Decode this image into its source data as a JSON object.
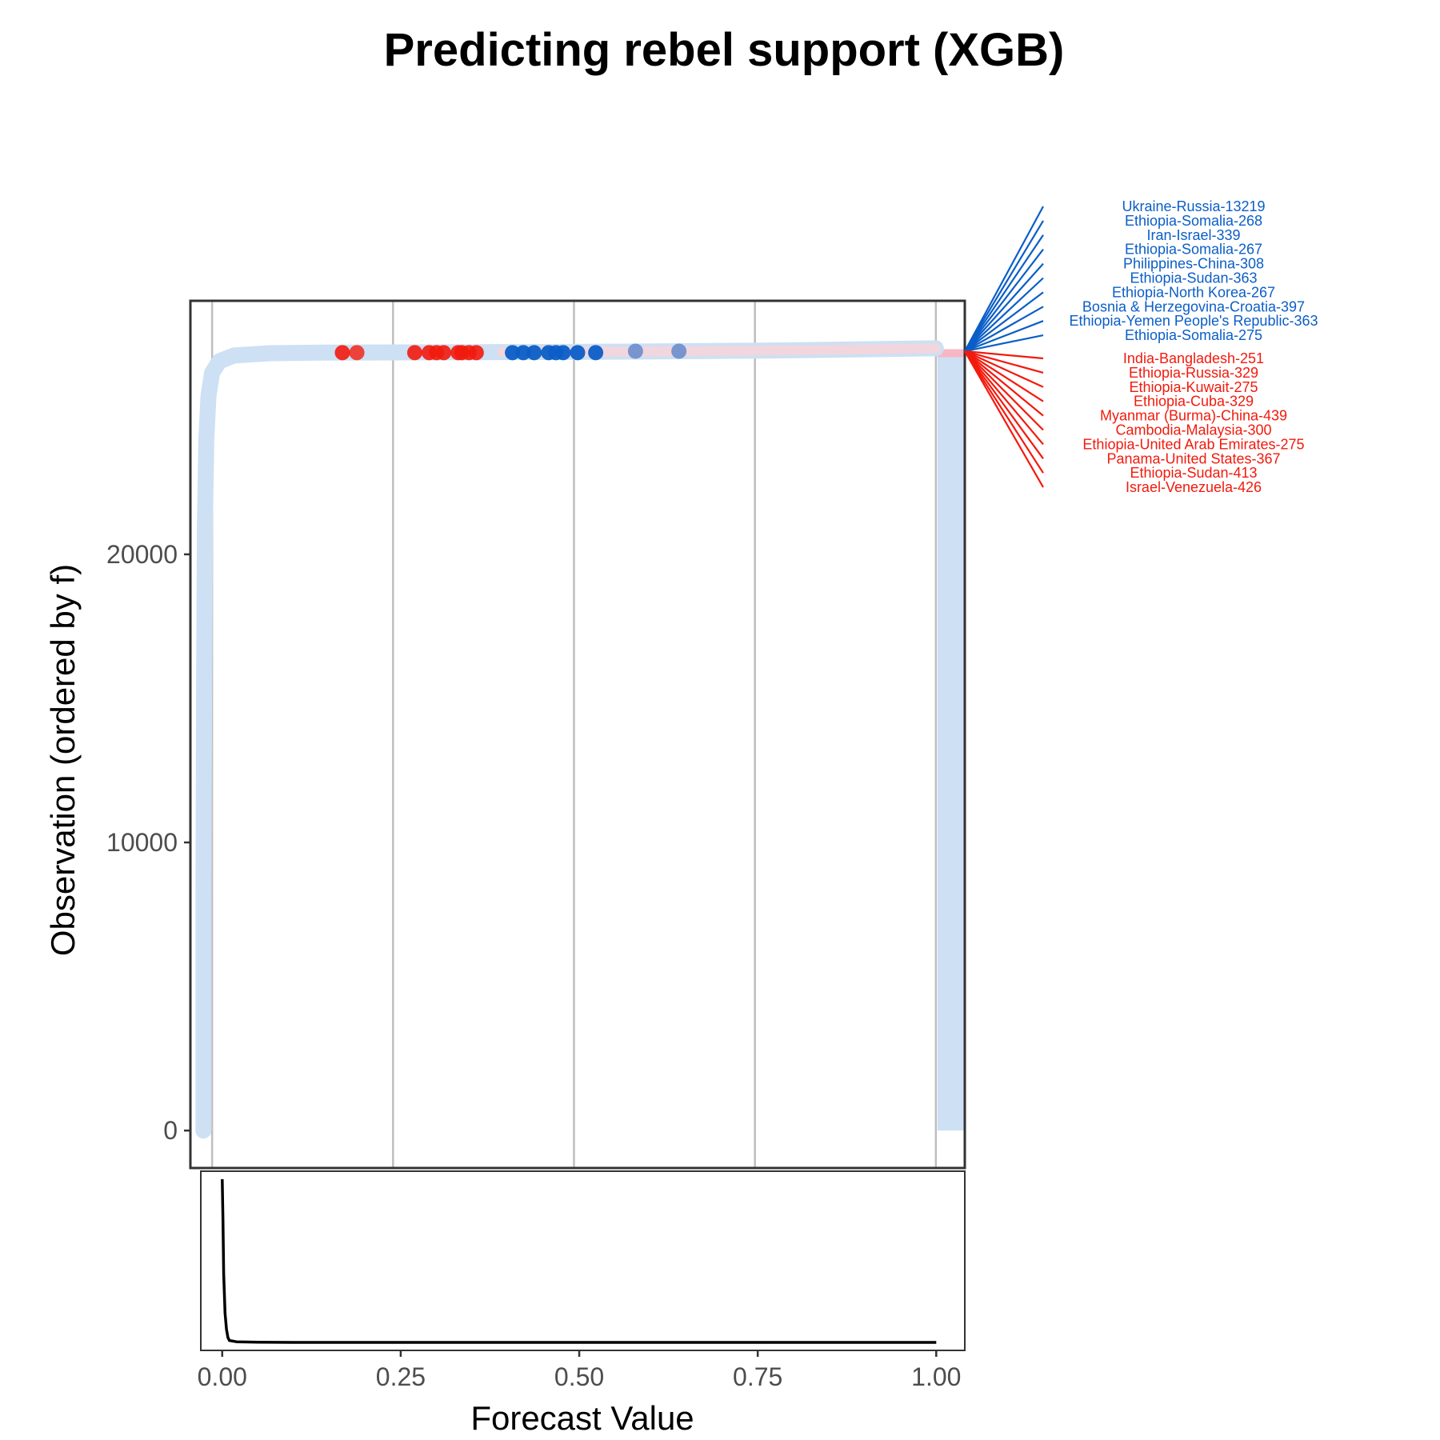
{
  "chart_data": {
    "type": "scatter",
    "title": "Predicting rebel support (XGB)",
    "xlabel": "Forecast Value",
    "ylabel": "Observation (ordered by f)",
    "xlim": [
      -0.03,
      1.04
    ],
    "ylim": [
      -1300,
      28800
    ],
    "x_ticks": [
      0.0,
      0.25,
      0.5,
      0.75,
      1.0
    ],
    "x_tick_labels": [
      "0.00",
      "0.25",
      "0.50",
      "0.75",
      "1.00"
    ],
    "y_ticks": [
      0,
      10000,
      20000
    ],
    "y_tick_labels": [
      "0",
      "10000",
      "20000"
    ],
    "grid": "vertical major",
    "n_observations": 27000,
    "colors": {
      "positive": "#0b5ec7",
      "negative": "#f21a0d",
      "background_points": "#cde0f4",
      "positive_light": "#aec9ee",
      "negative_light": "#fbd3d8",
      "density_line": "#000000",
      "panel_border": "#333333",
      "grid": "#bebebe"
    },
    "outcome_strip": {
      "x": 1.0,
      "y_range": [
        0,
        27000
      ],
      "color": "#cde0f4"
    },
    "highlighted_points": {
      "negative": [
        {
          "x": 0.18,
          "y": 27000
        },
        {
          "x": 0.2,
          "y": 27000
        },
        {
          "x": 0.28,
          "y": 27000
        },
        {
          "x": 0.3,
          "y": 27000
        },
        {
          "x": 0.31,
          "y": 27000
        },
        {
          "x": 0.32,
          "y": 27000
        },
        {
          "x": 0.34,
          "y": 27000
        },
        {
          "x": 0.345,
          "y": 27000
        },
        {
          "x": 0.355,
          "y": 27000
        },
        {
          "x": 0.365,
          "y": 27000
        }
      ],
      "positive": [
        {
          "x": 0.415,
          "y": 27000
        },
        {
          "x": 0.43,
          "y": 27000
        },
        {
          "x": 0.445,
          "y": 27000
        },
        {
          "x": 0.465,
          "y": 27000
        },
        {
          "x": 0.475,
          "y": 27000
        },
        {
          "x": 0.485,
          "y": 27000
        },
        {
          "x": 0.505,
          "y": 27000
        },
        {
          "x": 0.53,
          "y": 27000
        },
        {
          "x": 0.585,
          "y": 27050
        },
        {
          "x": 0.645,
          "y": 27050
        }
      ]
    },
    "forecast_curve": [
      {
        "x": -0.012,
        "y": 0
      },
      {
        "x": -0.012,
        "y": 8000
      },
      {
        "x": -0.011,
        "y": 16000
      },
      {
        "x": -0.01,
        "y": 21000
      },
      {
        "x": -0.008,
        "y": 24000
      },
      {
        "x": -0.005,
        "y": 25500
      },
      {
        "x": 0.0,
        "y": 26300
      },
      {
        "x": 0.01,
        "y": 26700
      },
      {
        "x": 0.03,
        "y": 26900
      },
      {
        "x": 0.08,
        "y": 26980
      },
      {
        "x": 0.15,
        "y": 27000
      },
      {
        "x": 0.4,
        "y": 27020
      },
      {
        "x": 0.6,
        "y": 27040
      },
      {
        "x": 0.8,
        "y": 27080
      },
      {
        "x": 1.0,
        "y": 27150
      }
    ],
    "positive_labels": [
      "Ukraine-Russia-13219",
      "Ethiopia-Somalia-268",
      "Iran-Israel-339",
      "Ethiopia-Somalia-267",
      "Philippines-China-308",
      "Ethiopia-Sudan-363",
      "Ethiopia-North Korea-267",
      "Bosnia & Herzegovina-Croatia-397",
      "Ethiopia-Yemen People's Republic-363",
      "Ethiopia-Somalia-275"
    ],
    "negative_labels": [
      "India-Bangladesh-251",
      "Ethiopia-Russia-329",
      "Ethiopia-Kuwait-275",
      "Ethiopia-Cuba-329",
      "Myanmar (Burma)-China-439",
      "Cambodia-Malaysia-300",
      "Ethiopia-United Arab Emirates-275",
      "Panama-United States-367",
      "Ethiopia-Sudan-413",
      "Israel-Venezuela-426"
    ],
    "density": {
      "x": [
        0.0,
        0.001,
        0.002,
        0.004,
        0.006,
        0.008,
        0.01,
        0.02,
        0.05,
        0.1,
        0.3,
        0.5,
        0.75,
        1.0
      ],
      "y": [
        1.0,
        0.75,
        0.42,
        0.18,
        0.08,
        0.03,
        0.012,
        0.004,
        0.001,
        0.0,
        0.0,
        0.0,
        0.0,
        0.0
      ]
    }
  }
}
